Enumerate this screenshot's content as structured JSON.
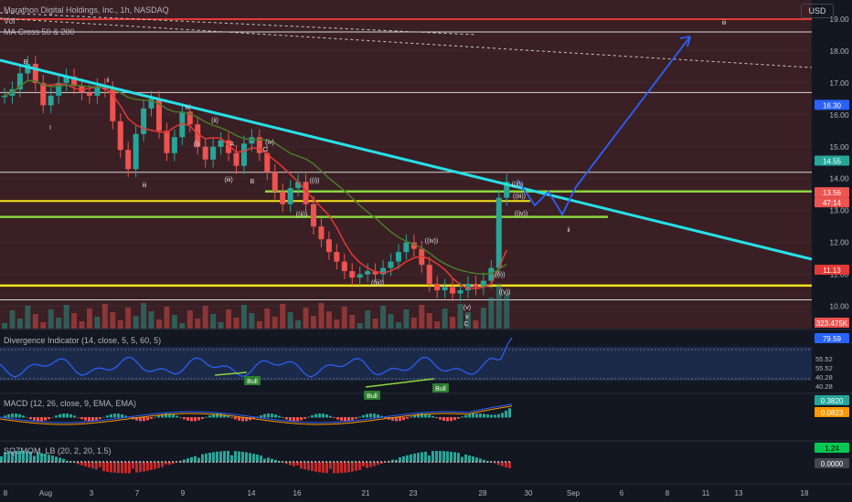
{
  "header": {
    "title": "Marathon Digital Holdings, Inc., 1h, NASDAQ",
    "vol_label": "Vol",
    "ma_label": "MA Cross 50 & 200",
    "currency": "USD"
  },
  "colors": {
    "background": "#131722",
    "price_panel_bg": "#3a1f24",
    "up": "#26a69a",
    "down": "#ef5350",
    "trendline": "#26e0e8",
    "resistance": "#e53935",
    "support_yellow": "#f5e21b",
    "support_green": "#8bd63b",
    "projection": "#2962ff",
    "ma50": "#e53935",
    "ma200": "#4a7a2a"
  },
  "x_axis": {
    "tick_labels": [
      "8",
      "Aug",
      "3",
      "7",
      "9",
      "14",
      "16",
      "21",
      "23",
      "28",
      "30",
      "Sep",
      "6",
      "8",
      "11",
      "13",
      "18"
    ]
  },
  "price_axis": {
    "ticks": [
      "19.00",
      "18.00",
      "17.00",
      "16.00",
      "15.00",
      "14.00",
      "13.00",
      "12.00",
      "11.00",
      "10.00"
    ],
    "tags": [
      {
        "value": "16.30",
        "color": "#2962ff"
      },
      {
        "value": "14.55",
        "color": "#26a69a"
      },
      {
        "value": "13.56",
        "color": "#ef5350"
      },
      {
        "value": "47:14",
        "color": "#ef5350"
      },
      {
        "value": "11.13",
        "color": "#e53935"
      },
      {
        "value": "323.475K",
        "color": "#ef5350"
      }
    ]
  },
  "wave_labels": [
    "B",
    "I",
    "ii",
    "iii",
    "iv",
    "(i)",
    "(ii)",
    "(iii)",
    "(iv)",
    "A",
    "B",
    "C",
    "((i))",
    "((ii))",
    "((iii))",
    "((iv))",
    "((i))",
    "((ii))",
    "((iii))",
    "((iv))",
    "(v)",
    "((v))",
    "v",
    "C",
    "ii",
    "iii"
  ],
  "indicators": {
    "divergence": {
      "label": "Divergence Indicator (14, close, 5, 5, 60, 5)",
      "current": "79.59",
      "levels": [
        "55.52",
        "55.52",
        "40.28",
        "40.28"
      ],
      "bull_labels": [
        "Bull",
        "Bull",
        "Bull"
      ]
    },
    "macd": {
      "label": "MACD (12, 26, close, 9, EMA, EMA)",
      "value1": "0.3820",
      "value2": "0.0823"
    },
    "sqzmom": {
      "label": "SQZMOM_LB (20, 2, 20, 1.5)",
      "value1": "1.24",
      "value2": "0.0000"
    }
  },
  "chart_data": {
    "type": "candlestick",
    "symbol": "MARA",
    "timeframe": "1h",
    "ylim": [
      9.3,
      19.6
    ],
    "levels": {
      "resistance": 19.0,
      "white_lines": [
        18.6,
        16.7,
        14.2,
        10.2
      ],
      "support_yellow": [
        13.3,
        10.65
      ],
      "support_green": [
        13.6,
        12.8
      ]
    },
    "close_series": [
      16.6,
      16.8,
      17.3,
      17.6,
      17.0,
      16.3,
      16.6,
      17.0,
      17.2,
      16.9,
      16.7,
      16.6,
      16.9,
      16.8,
      15.8,
      14.9,
      14.3,
      15.4,
      16.2,
      16.5,
      15.5,
      14.8,
      15.3,
      16.1,
      15.7,
      15.0,
      14.6,
      15.0,
      15.2,
      14.8,
      14.4,
      15.1,
      15.3,
      14.8,
      14.2,
      13.6,
      13.2,
      13.7,
      13.9,
      13.2,
      12.5,
      12.1,
      11.7,
      11.4,
      11.1,
      10.9,
      11.0,
      11.1,
      11.0,
      11.2,
      11.4,
      11.7,
      12.0,
      11.8,
      11.3,
      10.7,
      10.5,
      10.6,
      10.4,
      10.5,
      10.7,
      10.6,
      10.8,
      11.2,
      13.4,
      13.9
    ]
  }
}
